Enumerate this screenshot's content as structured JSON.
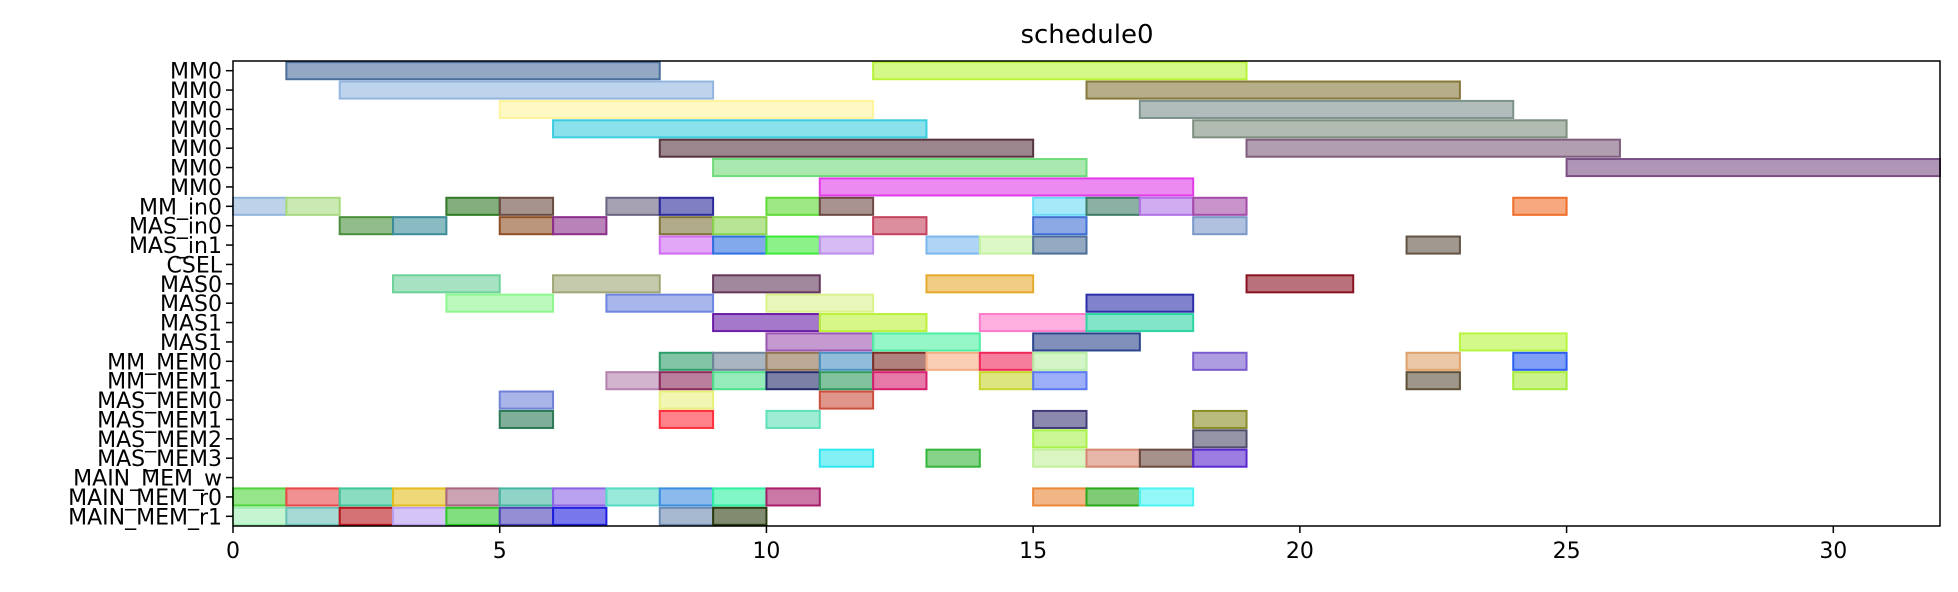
{
  "chart_data": {
    "type": "gantt",
    "title": "schedule0",
    "xlim": [
      0,
      32
    ],
    "x_ticks": [
      0,
      5,
      10,
      15,
      20,
      25,
      30
    ],
    "rows": [
      "MM0",
      "MM0",
      "MM0",
      "MM0",
      "MM0",
      "MM0",
      "MM0",
      "MM_in0",
      "MAS_in0",
      "MAS_in1",
      "CSEL",
      "MAS0",
      "MAS0",
      "MAS1",
      "MAS1",
      "MM_MEM0",
      "MM_MEM1",
      "MAS_MEM0",
      "MAS_MEM1",
      "MAS_MEM2",
      "MAS_MEM3",
      "MAIN_MEM_w",
      "MAIN_MEM_r0",
      "MAIN_MEM_r1"
    ],
    "tasks": [
      {
        "row": 0,
        "start": 1,
        "end": 8,
        "color": "#4a6e9c"
      },
      {
        "row": 0,
        "start": 12,
        "end": 19,
        "color": "#b8f53a"
      },
      {
        "row": 1,
        "start": 2,
        "end": 9,
        "color": "#93b6e0"
      },
      {
        "row": 1,
        "start": 16,
        "end": 23,
        "color": "#86773a"
      },
      {
        "row": 2,
        "start": 5,
        "end": 12,
        "color": "#fdf49c"
      },
      {
        "row": 2,
        "start": 17,
        "end": 24,
        "color": "#7d918d"
      },
      {
        "row": 3,
        "start": 6,
        "end": 13,
        "color": "#3ccde0"
      },
      {
        "row": 3,
        "start": 18,
        "end": 25,
        "color": "#7e8e7f"
      },
      {
        "row": 4,
        "start": 8,
        "end": 15,
        "color": "#56353f"
      },
      {
        "row": 4,
        "start": 19,
        "end": 26,
        "color": "#7f5e7d"
      },
      {
        "row": 5,
        "start": 9,
        "end": 16,
        "color": "#6fdb7a"
      },
      {
        "row": 5,
        "start": 25,
        "end": 32,
        "color": "#7a4f85"
      },
      {
        "row": 6,
        "start": 11,
        "end": 18,
        "color": "#e13ce8"
      },
      {
        "row": 7,
        "start": 0,
        "end": 1,
        "color": "#92b4dc"
      },
      {
        "row": 7,
        "start": 1,
        "end": 2,
        "color": "#a8db7e"
      },
      {
        "row": 7,
        "start": 4,
        "end": 5,
        "color": "#2f7a23"
      },
      {
        "row": 7,
        "start": 5,
        "end": 6,
        "color": "#6b4b42"
      },
      {
        "row": 7,
        "start": 7,
        "end": 8,
        "color": "#6a6481"
      },
      {
        "row": 7,
        "start": 8,
        "end": 9,
        "color": "#2c2a9b"
      },
      {
        "row": 7,
        "start": 10,
        "end": 11,
        "color": "#5ed935"
      },
      {
        "row": 7,
        "start": 11,
        "end": 12,
        "color": "#6e4b47"
      },
      {
        "row": 7,
        "start": 15,
        "end": 16,
        "color": "#6bdcf7"
      },
      {
        "row": 7,
        "start": 16,
        "end": 17,
        "color": "#3e7c67"
      },
      {
        "row": 7,
        "start": 17,
        "end": 18,
        "color": "#b174e6"
      },
      {
        "row": 7,
        "start": 18,
        "end": 19,
        "color": "#a44ca8"
      },
      {
        "row": 7,
        "start": 24,
        "end": 25,
        "color": "#f06e2a"
      },
      {
        "row": 8,
        "start": 2,
        "end": 3,
        "color": "#4a8f3c"
      },
      {
        "row": 8,
        "start": 3,
        "end": 4,
        "color": "#3c8c99"
      },
      {
        "row": 8,
        "start": 5,
        "end": 6,
        "color": "#8e4f24"
      },
      {
        "row": 8,
        "start": 6,
        "end": 7,
        "color": "#8b2f8b"
      },
      {
        "row": 8,
        "start": 8,
        "end": 9,
        "color": "#7f733a"
      },
      {
        "row": 8,
        "start": 9,
        "end": 10,
        "color": "#89d34f"
      },
      {
        "row": 8,
        "start": 12,
        "end": 13,
        "color": "#c4425e"
      },
      {
        "row": 8,
        "start": 15,
        "end": 16,
        "color": "#3f70d6"
      },
      {
        "row": 8,
        "start": 18,
        "end": 19,
        "color": "#7a98c8"
      },
      {
        "row": 9,
        "start": 8,
        "end": 9,
        "color": "#d16cf1"
      },
      {
        "row": 9,
        "start": 9,
        "end": 10,
        "color": "#2d70de"
      },
      {
        "row": 9,
        "start": 10,
        "end": 11,
        "color": "#3ee83a"
      },
      {
        "row": 9,
        "start": 11,
        "end": 12,
        "color": "#bd8eee"
      },
      {
        "row": 9,
        "start": 13,
        "end": 14,
        "color": "#7ab7ef"
      },
      {
        "row": 9,
        "start": 14,
        "end": 15,
        "color": "#c4f3a0"
      },
      {
        "row": 9,
        "start": 15,
        "end": 16,
        "color": "#4d6f9a"
      },
      {
        "row": 9,
        "start": 22,
        "end": 23,
        "color": "#625345"
      },
      {
        "row": 11,
        "start": 3,
        "end": 5,
        "color": "#6dd19a"
      },
      {
        "row": 11,
        "start": 6,
        "end": 8,
        "color": "#a0a675"
      },
      {
        "row": 11,
        "start": 9,
        "end": 11,
        "color": "#64385a"
      },
      {
        "row": 11,
        "start": 13,
        "end": 15,
        "color": "#e6ab2e"
      },
      {
        "row": 11,
        "start": 19,
        "end": 21,
        "color": "#8a1322"
      },
      {
        "row": 12,
        "start": 4,
        "end": 6,
        "color": "#8ef78f"
      },
      {
        "row": 12,
        "start": 7,
        "end": 9,
        "color": "#6e85df"
      },
      {
        "row": 12,
        "start": 10,
        "end": 12,
        "color": "#dcf28d"
      },
      {
        "row": 12,
        "start": 16,
        "end": 18,
        "color": "#2b2ea8"
      },
      {
        "row": 13,
        "start": 9,
        "end": 11,
        "color": "#6a1ea8"
      },
      {
        "row": 13,
        "start": 11,
        "end": 13,
        "color": "#bdf13a"
      },
      {
        "row": 13,
        "start": 14,
        "end": 16,
        "color": "#fe7acb"
      },
      {
        "row": 13,
        "start": 16,
        "end": 18,
        "color": "#2ed4a3"
      },
      {
        "row": 14,
        "start": 10,
        "end": 12,
        "color": "#9c57b2"
      },
      {
        "row": 14,
        "start": 12,
        "end": 14,
        "color": "#4ff0a4"
      },
      {
        "row": 14,
        "start": 15,
        "end": 17,
        "color": "#2b468d"
      },
      {
        "row": 14,
        "start": 23,
        "end": 25,
        "color": "#b7f53e"
      },
      {
        "row": 15,
        "start": 8,
        "end": 9,
        "color": "#2d9e6a"
      },
      {
        "row": 15,
        "start": 9,
        "end": 10,
        "color": "#6f8599"
      },
      {
        "row": 15,
        "start": 10,
        "end": 11,
        "color": "#8f7252"
      },
      {
        "row": 15,
        "start": 11,
        "end": 12,
        "color": "#4a91c1"
      },
      {
        "row": 15,
        "start": 12,
        "end": 13,
        "color": "#7d2f27"
      },
      {
        "row": 15,
        "start": 13,
        "end": 14,
        "color": "#f5ad82"
      },
      {
        "row": 15,
        "start": 14,
        "end": 15,
        "color": "#f2275a"
      },
      {
        "row": 15,
        "start": 15,
        "end": 16,
        "color": "#b6eea4"
      },
      {
        "row": 15,
        "start": 18,
        "end": 19,
        "color": "#7a5ccf"
      },
      {
        "row": 15,
        "start": 22,
        "end": 23,
        "color": "#e0a26a"
      },
      {
        "row": 15,
        "start": 24,
        "end": 25,
        "color": "#2a5ff0"
      },
      {
        "row": 16,
        "start": 7,
        "end": 8,
        "color": "#b582ad"
      },
      {
        "row": 16,
        "start": 8,
        "end": 9,
        "color": "#8c2a5b"
      },
      {
        "row": 16,
        "start": 9,
        "end": 10,
        "color": "#4fe08c"
      },
      {
        "row": 16,
        "start": 10,
        "end": 11,
        "color": "#242a6b"
      },
      {
        "row": 16,
        "start": 11,
        "end": 12,
        "color": "#2e9a5c"
      },
      {
        "row": 16,
        "start": 12,
        "end": 13,
        "color": "#d6206e"
      },
      {
        "row": 16,
        "start": 14,
        "end": 15,
        "color": "#c7d42c"
      },
      {
        "row": 16,
        "start": 15,
        "end": 16,
        "color": "#5a78f2"
      },
      {
        "row": 16,
        "start": 22,
        "end": 23,
        "color": "#5e5038"
      },
      {
        "row": 16,
        "start": 24,
        "end": 25,
        "color": "#a6ec3a"
      },
      {
        "row": 17,
        "start": 5,
        "end": 6,
        "color": "#6f82d8"
      },
      {
        "row": 17,
        "start": 8,
        "end": 9,
        "color": "#e7f27e"
      },
      {
        "row": 17,
        "start": 11,
        "end": 12,
        "color": "#cc4e3c"
      },
      {
        "row": 18,
        "start": 5,
        "end": 6,
        "color": "#2b7a55"
      },
      {
        "row": 18,
        "start": 8,
        "end": 9,
        "color": "#ff2f3c"
      },
      {
        "row": 18,
        "start": 10,
        "end": 11,
        "color": "#5ee0b8"
      },
      {
        "row": 18,
        "start": 15,
        "end": 16,
        "color": "#3f3a78"
      },
      {
        "row": 18,
        "start": 18,
        "end": 19,
        "color": "#8a8d27"
      },
      {
        "row": 19,
        "start": 15,
        "end": 16,
        "color": "#a8f24a"
      },
      {
        "row": 19,
        "start": 18,
        "end": 19,
        "color": "#4f4d6b"
      },
      {
        "row": 20,
        "start": 11,
        "end": 12,
        "color": "#30e6f0"
      },
      {
        "row": 20,
        "start": 13,
        "end": 14,
        "color": "#35b63a"
      },
      {
        "row": 20,
        "start": 15,
        "end": 16,
        "color": "#c1ef9a"
      },
      {
        "row": 20,
        "start": 16,
        "end": 17,
        "color": "#d68670"
      },
      {
        "row": 20,
        "start": 17,
        "end": 18,
        "color": "#6b4a3d"
      },
      {
        "row": 20,
        "start": 18,
        "end": 19,
        "color": "#5a28d0"
      },
      {
        "row": 22,
        "start": 0,
        "end": 1,
        "color": "#4fd33a"
      },
      {
        "row": 22,
        "start": 1,
        "end": 2,
        "color": "#ea4848"
      },
      {
        "row": 22,
        "start": 2,
        "end": 3,
        "color": "#3dc79a"
      },
      {
        "row": 22,
        "start": 3,
        "end": 4,
        "color": "#e4be1e"
      },
      {
        "row": 22,
        "start": 4,
        "end": 5,
        "color": "#a9667e"
      },
      {
        "row": 22,
        "start": 5,
        "end": 6,
        "color": "#44b7a2"
      },
      {
        "row": 22,
        "start": 6,
        "end": 7,
        "color": "#8d64e6"
      },
      {
        "row": 22,
        "start": 7,
        "end": 8,
        "color": "#57dcc4"
      },
      {
        "row": 22,
        "start": 8,
        "end": 9,
        "color": "#3c8ee0"
      },
      {
        "row": 22,
        "start": 9,
        "end": 10,
        "color": "#2df0a0"
      },
      {
        "row": 22,
        "start": 10,
        "end": 11,
        "color": "#a81e6a"
      },
      {
        "row": 22,
        "start": 15,
        "end": 16,
        "color": "#ea8636"
      },
      {
        "row": 22,
        "start": 16,
        "end": 17,
        "color": "#2aa81a"
      },
      {
        "row": 22,
        "start": 17,
        "end": 18,
        "color": "#4ff3f3"
      },
      {
        "row": 23,
        "start": 0,
        "end": 1,
        "color": "#9eeeb2"
      },
      {
        "row": 23,
        "start": 1,
        "end": 2,
        "color": "#6cc2b8"
      },
      {
        "row": 23,
        "start": 2,
        "end": 3,
        "color": "#b7141b"
      },
      {
        "row": 23,
        "start": 3,
        "end": 4,
        "color": "#b89ef0"
      },
      {
        "row": 23,
        "start": 4,
        "end": 5,
        "color": "#2ec92b"
      },
      {
        "row": 23,
        "start": 5,
        "end": 6,
        "color": "#4d44b7"
      },
      {
        "row": 23,
        "start": 6,
        "end": 7,
        "color": "#1e1ee0"
      },
      {
        "row": 23,
        "start": 8,
        "end": 9,
        "color": "#6b8ab0"
      },
      {
        "row": 23,
        "start": 9,
        "end": 10,
        "color": "#2b3d10"
      }
    ]
  }
}
